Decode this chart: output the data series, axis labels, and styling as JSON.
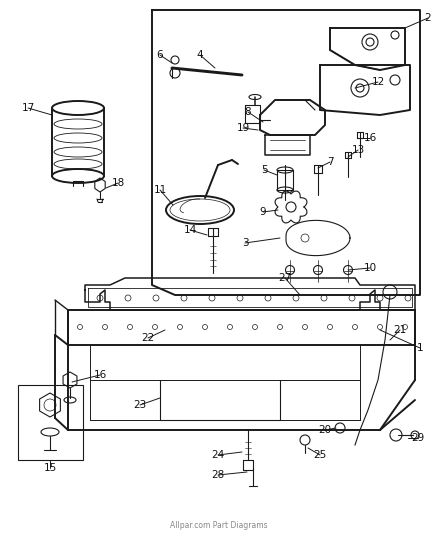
{
  "bg_color": "#ffffff",
  "line_color": "#1a1a1a",
  "footer_text": "Allpar.com Part Diagrams",
  "fig_width": 4.38,
  "fig_height": 5.33,
  "dpi": 100,
  "label_fontsize": 7.0
}
